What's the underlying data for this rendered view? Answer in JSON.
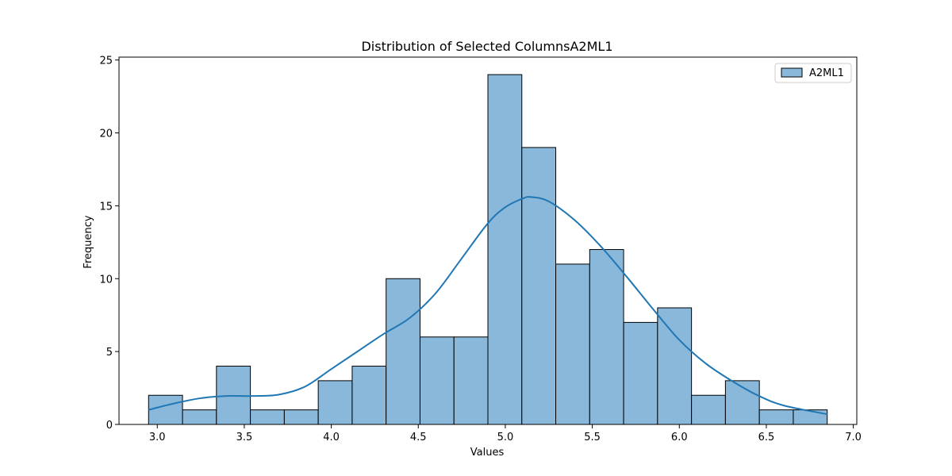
{
  "chart_data": {
    "type": "bar",
    "subtype": "histogram",
    "title": "Distribution of Selected ColumnsA2ML1",
    "xlabel": "Values",
    "ylabel": "Frequency",
    "xlim": [
      2.78,
      7.02
    ],
    "ylim": [
      0,
      25.2
    ],
    "x_ticks": [
      3.0,
      3.5,
      4.0,
      4.5,
      5.0,
      5.5,
      6.0,
      6.5,
      7.0
    ],
    "x_tick_labels": [
      "3.0",
      "3.5",
      "4.0",
      "4.5",
      "5.0",
      "5.5",
      "6.0",
      "6.5",
      "7.0"
    ],
    "y_ticks": [
      0,
      5,
      10,
      15,
      20,
      25
    ],
    "y_tick_labels": [
      "0",
      "5",
      "10",
      "15",
      "20",
      "25"
    ],
    "bin_edges": [
      2.95,
      3.145,
      3.34,
      3.535,
      3.73,
      3.925,
      4.12,
      4.315,
      4.51,
      4.705,
      4.9,
      5.095,
      5.29,
      5.485,
      5.68,
      5.875,
      6.07,
      6.265,
      6.46,
      6.655,
      6.85
    ],
    "series": [
      {
        "name": "A2ML1",
        "values": [
          2,
          1,
          4,
          1,
          1,
          3,
          4,
          10,
          6,
          6,
          24,
          19,
          11,
          12,
          7,
          8,
          2,
          3,
          1,
          1
        ],
        "color": "#8ab8da",
        "edge_color": "#000000"
      }
    ],
    "kde": {
      "color": "#1f77b4",
      "x": [
        2.95,
        3.1,
        3.25,
        3.4,
        3.55,
        3.7,
        3.85,
        4.0,
        4.15,
        4.3,
        4.45,
        4.6,
        4.75,
        4.9,
        5.0,
        5.1,
        5.15,
        5.25,
        5.4,
        5.55,
        5.7,
        5.85,
        6.0,
        6.15,
        6.3,
        6.45,
        6.6,
        6.85
      ],
      "y": [
        1.0,
        1.45,
        1.8,
        1.95,
        1.95,
        2.05,
        2.6,
        3.8,
        5.0,
        6.2,
        7.3,
        9.0,
        11.4,
        13.8,
        14.9,
        15.5,
        15.6,
        15.3,
        14.0,
        12.2,
        10.1,
        7.9,
        5.8,
        4.2,
        3.0,
        2.0,
        1.3,
        0.7
      ]
    },
    "legend": {
      "placement": "top-right",
      "entries": [
        "A2ML1"
      ]
    },
    "grid": false
  }
}
